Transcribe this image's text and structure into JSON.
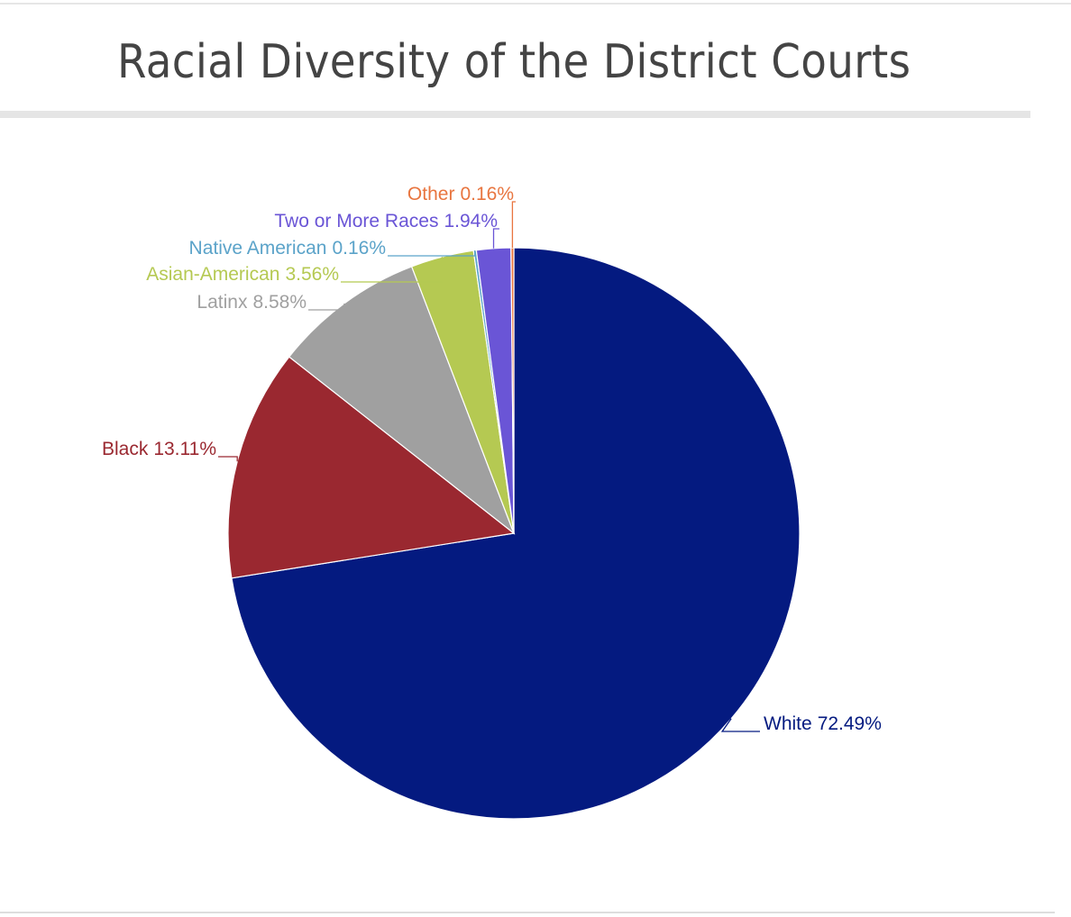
{
  "chart_data": {
    "type": "pie",
    "title": "Racial Diversity of the District Courts",
    "categories": [
      "White",
      "Black",
      "Latinx",
      "Asian-American",
      "Native American",
      "Two or More Races",
      "Other"
    ],
    "values": [
      72.49,
      13.11,
      8.58,
      3.56,
      0.16,
      1.94,
      0.16
    ],
    "value_labels": [
      "72.49%",
      "13.11%",
      "8.58%",
      "3.56%",
      "0.16%",
      "1.94%",
      "0.16%"
    ],
    "colors": [
      "#041a80",
      "#9a2830",
      "#a0a0a0",
      "#b5c952",
      "#5ba3c9",
      "#6a55d6",
      "#e8753f"
    ]
  }
}
